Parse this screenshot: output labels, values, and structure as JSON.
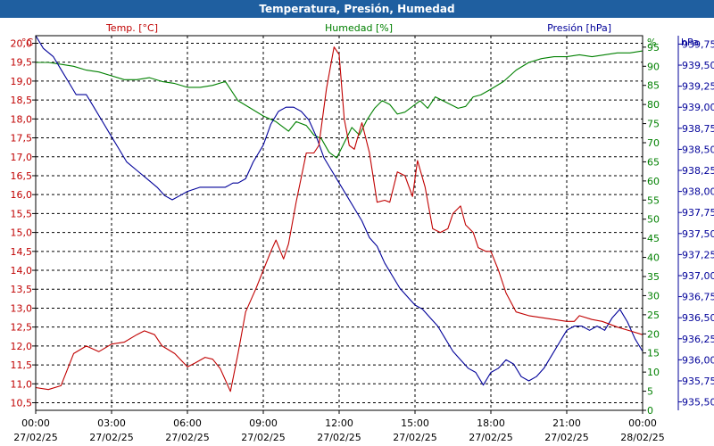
{
  "title": "Temperatura, Presión, Humedad",
  "colors": {
    "title_bg": "#1f5fa0",
    "temperature": "#c00000",
    "humidity": "#008000",
    "pressure": "#000099",
    "grid": "#000000"
  },
  "chart_data": {
    "type": "line",
    "title": "Temperatura, Presión, Humedad",
    "grid": true,
    "x_ticks": [
      {
        "time": "00:00",
        "date": "27/02/25"
      },
      {
        "time": "03:00",
        "date": "27/02/25"
      },
      {
        "time": "06:00",
        "date": "27/02/25"
      },
      {
        "time": "09:00",
        "date": "27/02/25"
      },
      {
        "time": "12:00",
        "date": "27/02/25"
      },
      {
        "time": "15:00",
        "date": "27/02/25"
      },
      {
        "time": "18:00",
        "date": "27/02/25"
      },
      {
        "time": "21:00",
        "date": "27/02/25"
      },
      {
        "time": "00:00",
        "date": "28/02/25"
      }
    ],
    "x_unit": "hours",
    "x_range": [
      0,
      24
    ],
    "axes": {
      "temperature": {
        "label": "Temp. [°C]",
        "unit": "°C",
        "range": [
          10.3,
          20.2
        ],
        "ticks": [
          "10,5",
          "11,0",
          "11,5",
          "12,0",
          "12,5",
          "13,0",
          "13,5",
          "14,0",
          "14,5",
          "15,0",
          "15,5",
          "16,0",
          "16,5",
          "17,0",
          "17,5",
          "18,0",
          "18,5",
          "19,0",
          "19,5",
          "20,0"
        ],
        "tick_values": [
          10.5,
          11,
          11.5,
          12,
          12.5,
          13,
          13.5,
          14,
          14.5,
          15,
          15.5,
          16,
          16.5,
          17,
          17.5,
          18,
          18.5,
          19,
          19.5,
          20
        ]
      },
      "humidity": {
        "label": "Humedad [%]",
        "unit": "%",
        "range": [
          0,
          98
        ],
        "ticks": [
          "0",
          "5",
          "10",
          "15",
          "20",
          "25",
          "30",
          "35",
          "40",
          "45",
          "50",
          "55",
          "60",
          "65",
          "70",
          "75",
          "80",
          "85",
          "90",
          "95"
        ],
        "tick_values": [
          0,
          5,
          10,
          15,
          20,
          25,
          30,
          35,
          40,
          45,
          50,
          55,
          60,
          65,
          70,
          75,
          80,
          85,
          90,
          95
        ]
      },
      "pressure": {
        "label": "Presión [hPa]",
        "unit": "hPa",
        "range": [
          935.4,
          939.85
        ],
        "ticks": [
          "935,50",
          "935,75",
          "936,00",
          "936,25",
          "936,50",
          "936,75",
          "937,00",
          "937,25",
          "937,50",
          "937,75",
          "938,00",
          "938,25",
          "938,50",
          "938,75",
          "939,00",
          "939,25",
          "939,50",
          "939,75"
        ],
        "tick_values": [
          935.5,
          935.75,
          936,
          936.25,
          936.5,
          936.75,
          937,
          937.25,
          937.5,
          937.75,
          938,
          938.25,
          938.5,
          938.75,
          939,
          939.25,
          939.5,
          939.75
        ]
      }
    },
    "series": [
      {
        "name": "Temp. [°C]",
        "axis": "temperature",
        "points": [
          [
            0,
            10.9
          ],
          [
            0.5,
            10.85
          ],
          [
            1,
            10.95
          ],
          [
            1.5,
            11.8
          ],
          [
            2,
            12.0
          ],
          [
            2.5,
            11.85
          ],
          [
            3,
            12.05
          ],
          [
            3.5,
            12.1
          ],
          [
            4,
            12.3
          ],
          [
            4.3,
            12.4
          ],
          [
            4.7,
            12.3
          ],
          [
            5,
            12.0
          ],
          [
            5.5,
            11.8
          ],
          [
            6,
            11.45
          ],
          [
            6.3,
            11.55
          ],
          [
            6.7,
            11.7
          ],
          [
            7,
            11.65
          ],
          [
            7.3,
            11.4
          ],
          [
            7.7,
            10.8
          ],
          [
            8,
            11.8
          ],
          [
            8.3,
            12.9
          ],
          [
            8.7,
            13.5
          ],
          [
            9,
            14.0
          ],
          [
            9.3,
            14.5
          ],
          [
            9.5,
            14.8
          ],
          [
            9.8,
            14.3
          ],
          [
            10,
            14.7
          ],
          [
            10.3,
            15.8
          ],
          [
            10.7,
            17.1
          ],
          [
            11,
            17.1
          ],
          [
            11.2,
            17.3
          ],
          [
            11.5,
            18.8
          ],
          [
            11.8,
            19.9
          ],
          [
            12,
            19.7
          ],
          [
            12.2,
            18.0
          ],
          [
            12.4,
            17.3
          ],
          [
            12.6,
            17.2
          ],
          [
            12.9,
            17.9
          ],
          [
            13.2,
            17.1
          ],
          [
            13.5,
            15.8
          ],
          [
            13.8,
            15.85
          ],
          [
            14,
            15.8
          ],
          [
            14.3,
            16.6
          ],
          [
            14.6,
            16.5
          ],
          [
            14.9,
            15.95
          ],
          [
            15.1,
            16.9
          ],
          [
            15.4,
            16.2
          ],
          [
            15.7,
            15.1
          ],
          [
            16,
            15.0
          ],
          [
            16.3,
            15.1
          ],
          [
            16.5,
            15.5
          ],
          [
            16.8,
            15.7
          ],
          [
            17,
            15.2
          ],
          [
            17.3,
            15.0
          ],
          [
            17.5,
            14.6
          ],
          [
            17.8,
            14.5
          ],
          [
            18,
            14.5
          ],
          [
            18.3,
            14.0
          ],
          [
            18.6,
            13.4
          ],
          [
            19,
            12.9
          ],
          [
            19.5,
            12.8
          ],
          [
            20,
            12.75
          ],
          [
            20.5,
            12.7
          ],
          [
            21,
            12.65
          ],
          [
            21.3,
            12.65
          ],
          [
            21.5,
            12.8
          ],
          [
            22,
            12.7
          ],
          [
            22.4,
            12.65
          ],
          [
            23,
            12.5
          ],
          [
            23.5,
            12.4
          ],
          [
            24,
            12.3
          ]
        ]
      },
      {
        "name": "Humedad [%]",
        "axis": "humidity",
        "points": [
          [
            0,
            91
          ],
          [
            0.5,
            91
          ],
          [
            1,
            90.5
          ],
          [
            1.5,
            90
          ],
          [
            2,
            89
          ],
          [
            2.5,
            88.5
          ],
          [
            3,
            87.5
          ],
          [
            3.5,
            86.5
          ],
          [
            4,
            86.5
          ],
          [
            4.5,
            87
          ],
          [
            5,
            86
          ],
          [
            5.5,
            85.5
          ],
          [
            6,
            84.5
          ],
          [
            6.5,
            84.5
          ],
          [
            7,
            85
          ],
          [
            7.5,
            86
          ],
          [
            8,
            81
          ],
          [
            8.5,
            79
          ],
          [
            9,
            77
          ],
          [
            9.5,
            75.5
          ],
          [
            10,
            73
          ],
          [
            10.3,
            75.5
          ],
          [
            10.7,
            74.5
          ],
          [
            11,
            72
          ],
          [
            11.3,
            71
          ],
          [
            11.6,
            67.5
          ],
          [
            11.9,
            66
          ],
          [
            12.2,
            70
          ],
          [
            12.5,
            74
          ],
          [
            12.8,
            72
          ],
          [
            13.1,
            76
          ],
          [
            13.4,
            79
          ],
          [
            13.7,
            81
          ],
          [
            14,
            80
          ],
          [
            14.3,
            77.5
          ],
          [
            14.6,
            78
          ],
          [
            14.9,
            79.5
          ],
          [
            15.2,
            81
          ],
          [
            15.5,
            79
          ],
          [
            15.8,
            82
          ],
          [
            16.1,
            81
          ],
          [
            16.4,
            80
          ],
          [
            16.7,
            79
          ],
          [
            17,
            79.5
          ],
          [
            17.3,
            82
          ],
          [
            17.6,
            82.5
          ],
          [
            18,
            84
          ],
          [
            18.5,
            86
          ],
          [
            19,
            89
          ],
          [
            19.5,
            91
          ],
          [
            20,
            92
          ],
          [
            20.5,
            92.5
          ],
          [
            21,
            92.5
          ],
          [
            21.5,
            93
          ],
          [
            22,
            92.5
          ],
          [
            22.5,
            93
          ],
          [
            23,
            93.5
          ],
          [
            23.5,
            93.5
          ],
          [
            24,
            94
          ]
        ]
      },
      {
        "name": "Presión [hPa]",
        "axis": "pressure",
        "points": [
          [
            0,
            939.85
          ],
          [
            0.3,
            939.7
          ],
          [
            0.7,
            939.6
          ],
          [
            1,
            939.45
          ],
          [
            1.3,
            939.3
          ],
          [
            1.6,
            939.15
          ],
          [
            2,
            939.15
          ],
          [
            2.3,
            939.0
          ],
          [
            2.6,
            938.85
          ],
          [
            3,
            938.65
          ],
          [
            3.3,
            938.5
          ],
          [
            3.6,
            938.35
          ],
          [
            4,
            938.25
          ],
          [
            4.4,
            938.15
          ],
          [
            4.8,
            938.05
          ],
          [
            5.1,
            937.95
          ],
          [
            5.4,
            937.9
          ],
          [
            5.7,
            937.95
          ],
          [
            6,
            938.0
          ],
          [
            6.5,
            938.05
          ],
          [
            7,
            938.05
          ],
          [
            7.5,
            938.05
          ],
          [
            7.8,
            938.1
          ],
          [
            8,
            938.1
          ],
          [
            8.3,
            938.15
          ],
          [
            8.6,
            938.35
          ],
          [
            9,
            938.55
          ],
          [
            9.3,
            938.8
          ],
          [
            9.6,
            938.95
          ],
          [
            9.9,
            939.0
          ],
          [
            10.2,
            939.0
          ],
          [
            10.5,
            938.95
          ],
          [
            10.8,
            938.85
          ],
          [
            11.1,
            938.65
          ],
          [
            11.4,
            938.4
          ],
          [
            11.7,
            938.25
          ],
          [
            12,
            938.1
          ],
          [
            12.3,
            937.95
          ],
          [
            12.6,
            937.8
          ],
          [
            12.9,
            937.65
          ],
          [
            13.2,
            937.45
          ],
          [
            13.5,
            937.35
          ],
          [
            13.8,
            937.15
          ],
          [
            14.1,
            937.0
          ],
          [
            14.4,
            936.85
          ],
          [
            14.7,
            936.75
          ],
          [
            15.0,
            936.65
          ],
          [
            15.3,
            936.6
          ],
          [
            15.6,
            936.5
          ],
          [
            15.9,
            936.4
          ],
          [
            16.2,
            936.25
          ],
          [
            16.5,
            936.1
          ],
          [
            16.8,
            936.0
          ],
          [
            17.1,
            935.9
          ],
          [
            17.4,
            935.85
          ],
          [
            17.7,
            935.7
          ],
          [
            18,
            935.85
          ],
          [
            18.3,
            935.9
          ],
          [
            18.6,
            936.0
          ],
          [
            18.9,
            935.95
          ],
          [
            19.2,
            935.8
          ],
          [
            19.5,
            935.75
          ],
          [
            19.8,
            935.8
          ],
          [
            20.1,
            935.9
          ],
          [
            20.4,
            936.05
          ],
          [
            20.7,
            936.2
          ],
          [
            21,
            936.35
          ],
          [
            21.3,
            936.4
          ],
          [
            21.6,
            936.4
          ],
          [
            21.9,
            936.35
          ],
          [
            22.2,
            936.4
          ],
          [
            22.5,
            936.35
          ],
          [
            22.8,
            936.5
          ],
          [
            23.1,
            936.6
          ],
          [
            23.4,
            936.45
          ],
          [
            23.7,
            936.25
          ],
          [
            24,
            936.1
          ]
        ]
      }
    ]
  }
}
